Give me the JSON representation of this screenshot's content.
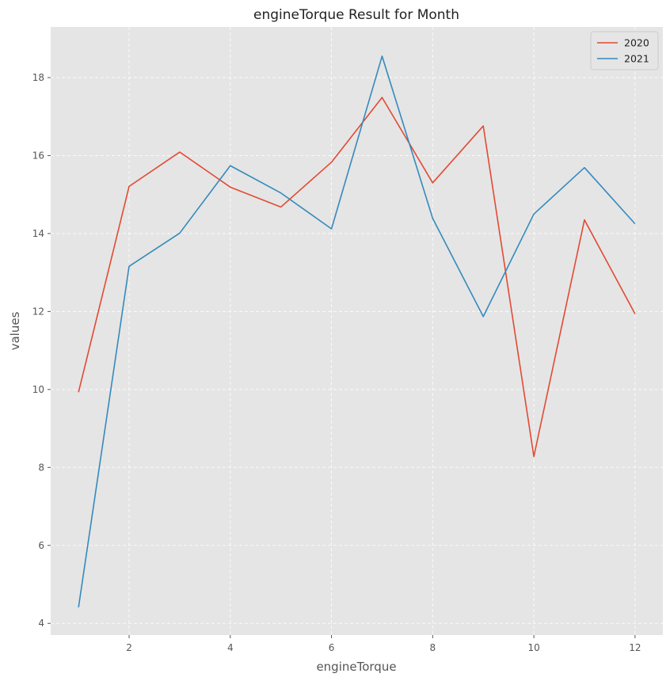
{
  "chart_data": {
    "type": "line",
    "title": "engineTorque Result for Month",
    "xlabel": "engineTorque",
    "ylabel": "values",
    "x": [
      1,
      2,
      3,
      4,
      5,
      6,
      7,
      8,
      9,
      10,
      11,
      12
    ],
    "xlim": [
      0.45,
      12.55
    ],
    "ylim": [
      3.7,
      19.3
    ],
    "xticks": [
      2,
      4,
      6,
      8,
      10,
      12
    ],
    "yticks": [
      4,
      6,
      8,
      10,
      12,
      14,
      16,
      18
    ],
    "grid": true,
    "legend_position": "top-right",
    "series": [
      {
        "name": "2020",
        "color": "#E24A33",
        "values": [
          9.93,
          15.21,
          16.09,
          15.19,
          14.68,
          15.83,
          17.49,
          15.3,
          16.76,
          8.28,
          14.35,
          11.94
        ]
      },
      {
        "name": "2021",
        "color": "#348ABD",
        "values": [
          4.41,
          13.16,
          14.01,
          15.74,
          15.04,
          14.12,
          18.55,
          14.39,
          11.87,
          14.5,
          15.69,
          14.25
        ]
      }
    ]
  }
}
